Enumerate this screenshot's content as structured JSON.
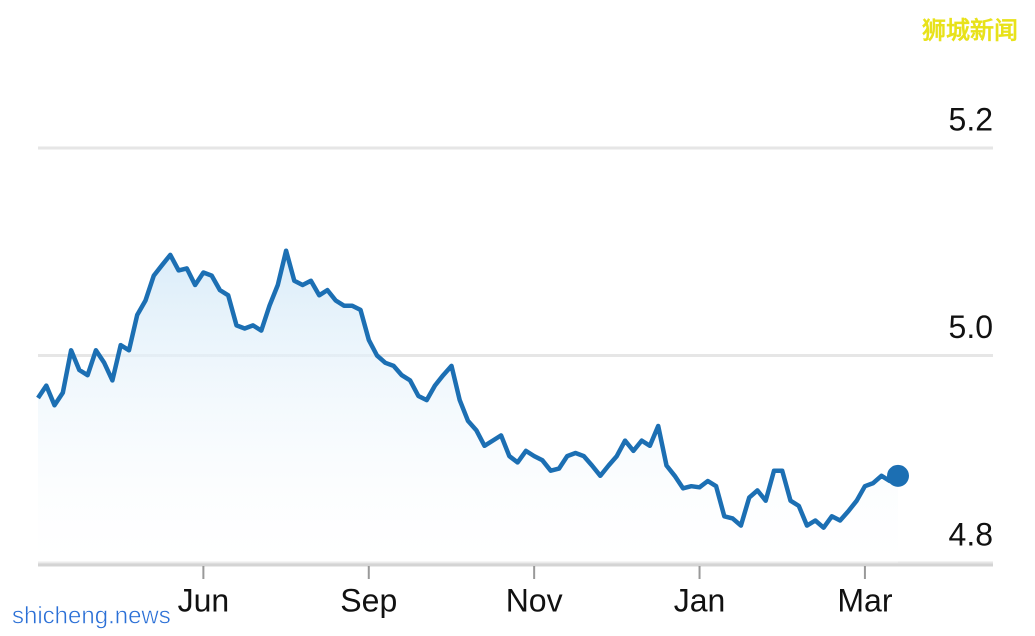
{
  "chart_data": {
    "type": "line",
    "watermark_top": "狮城新闻",
    "watermark_bottom": "shicheng.news",
    "categories": [
      null,
      null,
      null,
      null,
      null,
      null,
      null,
      null,
      null,
      null,
      null,
      null,
      null,
      null,
      null,
      null,
      null,
      null,
      null,
      null,
      "Jun",
      null,
      null,
      null,
      null,
      null,
      null,
      null,
      null,
      null,
      null,
      null,
      null,
      null,
      null,
      null,
      null,
      null,
      null,
      null,
      "Sep",
      null,
      null,
      null,
      null,
      null,
      null,
      null,
      null,
      null,
      null,
      null,
      null,
      null,
      null,
      null,
      null,
      null,
      null,
      null,
      "Nov",
      null,
      null,
      null,
      null,
      null,
      null,
      null,
      null,
      null,
      null,
      null,
      null,
      null,
      null,
      null,
      null,
      null,
      null,
      null,
      "Jan",
      null,
      null,
      null,
      null,
      null,
      null,
      null,
      null,
      null,
      null,
      null,
      null,
      null,
      null,
      null,
      null,
      null,
      null,
      null,
      "Mar",
      null,
      null,
      null,
      null
    ],
    "values": [
      4.959,
      4.971,
      4.952,
      4.964,
      5.005,
      4.986,
      4.981,
      5.005,
      4.993,
      4.976,
      5.01,
      5.005,
      5.039,
      5.053,
      5.077,
      5.087,
      5.097,
      5.082,
      5.084,
      5.068,
      5.08,
      5.077,
      5.063,
      5.058,
      5.029,
      5.026,
      5.029,
      5.024,
      5.048,
      5.068,
      5.101,
      5.072,
      5.068,
      5.072,
      5.058,
      5.063,
      5.053,
      5.048,
      5.048,
      5.044,
      5.015,
      5.0,
      4.993,
      4.99,
      4.981,
      4.976,
      4.961,
      4.957,
      4.971,
      4.981,
      4.99,
      4.957,
      4.937,
      4.928,
      4.913,
      4.918,
      4.923,
      4.903,
      4.897,
      4.908,
      4.903,
      4.899,
      4.889,
      4.891,
      4.903,
      4.906,
      4.903,
      4.894,
      4.884,
      4.894,
      4.903,
      4.918,
      4.908,
      4.918,
      4.913,
      4.932,
      4.894,
      4.884,
      4.872,
      4.874,
      4.873,
      4.879,
      4.874,
      4.845,
      4.843,
      4.836,
      4.863,
      4.87,
      4.86,
      4.889,
      4.889,
      4.86,
      4.855,
      4.836,
      4.841,
      4.834,
      4.845,
      4.841,
      4.85,
      4.86,
      4.874,
      4.877,
      4.884,
      4.879,
      4.884
    ],
    "color": "#1c6fb3",
    "ylim": [
      4.8,
      5.2
    ],
    "yticks": [
      4.8,
      {
        "value": 5.0,
        "label": "5.0"
      },
      5.2
    ],
    "grid": true
  }
}
